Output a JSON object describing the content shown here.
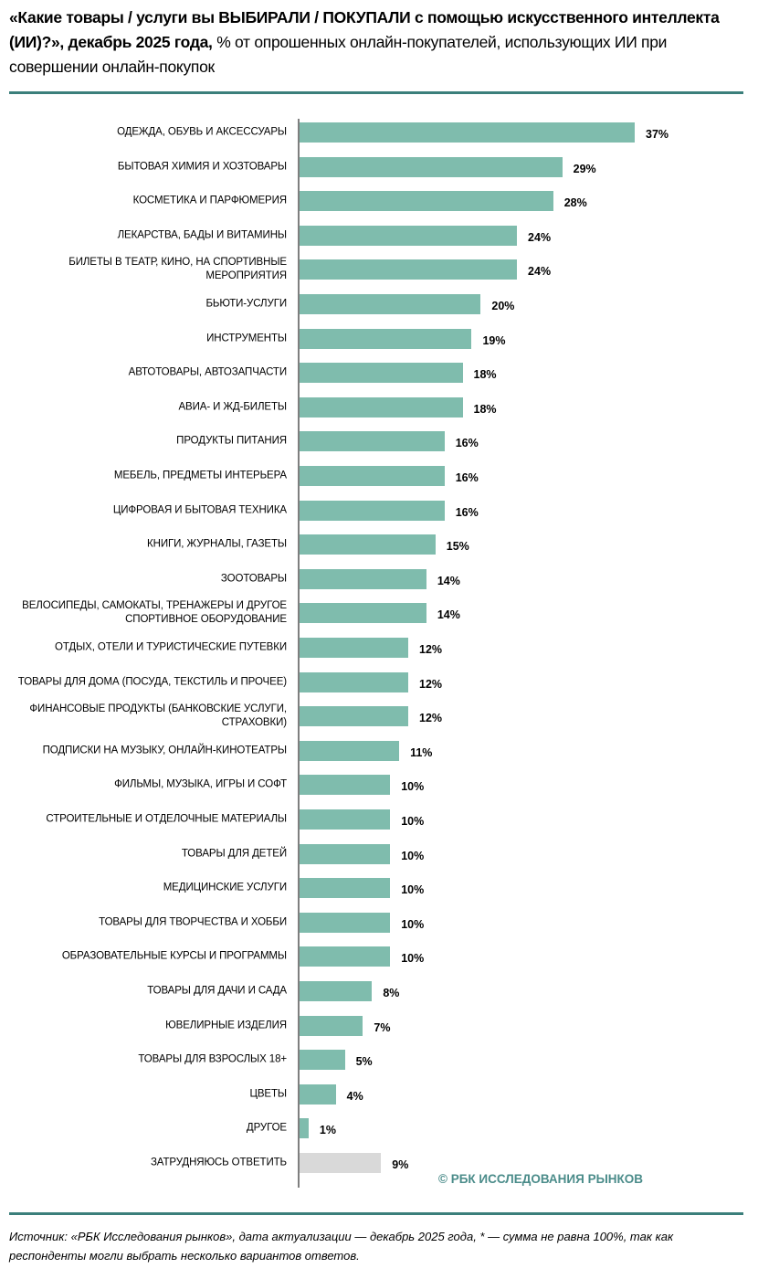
{
  "header": {
    "title_bold": "«Какие товары / услуги вы ВЫБИРАЛИ / ПОКУПАЛИ с помощью искусственного интеллекта (ИИ)?», декабрь 2025 года,",
    "title_regular": "% от опрошенных онлайн-покупателей, использующих ИИ при совершении онлайн-покупок"
  },
  "chart_data": {
    "type": "bar",
    "orientation": "horizontal",
    "unit": "%",
    "xlim": [
      0,
      37
    ],
    "grid": false,
    "colors": {
      "bar": "#7fbcad",
      "other_bar": "#d9d9d9",
      "accent": "#3b7f7b"
    },
    "categories": [
      "ОДЕЖДА, ОБУВЬ И АКСЕССУАРЫ",
      "БЫТОВАЯ ХИМИЯ И ХОЗТОВАРЫ",
      "КОСМЕТИКА И ПАРФЮМЕРИЯ",
      "ЛЕКАРСТВА, БАДЫ И ВИТАМИНЫ",
      "БИЛЕТЫ В ТЕАТР, КИНО, НА СПОРТИВНЫЕ МЕРОПРИЯТИЯ",
      "БЬЮТИ-УСЛУГИ",
      "ИНСТРУМЕНТЫ",
      "АВТОТОВАРЫ, АВТОЗАПЧАСТИ",
      "АВИА- И ЖД-БИЛЕТЫ",
      "ПРОДУКТЫ ПИТАНИЯ",
      "МЕБЕЛЬ, ПРЕДМЕТЫ ИНТЕРЬЕРА",
      "ЦИФРОВАЯ И БЫТОВАЯ ТЕХНИКА",
      "КНИГИ, ЖУРНАЛЫ, ГАЗЕТЫ",
      "ЗООТОВАРЫ",
      "ВЕЛОСИПЕДЫ, САМОКАТЫ, ТРЕНАЖЕРЫ И ДРУГОЕ СПОРТИВНОЕ ОБОРУДОВАНИЕ",
      "ОТДЫХ, ОТЕЛИ И ТУРИСТИЧЕСКИЕ ПУТЕВКИ",
      "ТОВАРЫ ДЛЯ ДОМА (ПОСУДА, ТЕКСТИЛЬ И ПРОЧЕЕ)",
      "ФИНАНСОВЫЕ ПРОДУКТЫ (БАНКОВСКИЕ УСЛУГИ, СТРАХОВКИ)",
      "ПОДПИСКИ НА МУЗЫКУ, ОНЛАЙН-КИНОТЕАТРЫ",
      "ФИЛЬМЫ, МУЗЫКА, ИГРЫ И СОФТ",
      "СТРОИТЕЛЬНЫЕ И ОТДЕЛОЧНЫЕ МАТЕРИАЛЫ",
      "ТОВАРЫ ДЛЯ ДЕТЕЙ",
      "МЕДИЦИНСКИЕ УСЛУГИ",
      "ТОВАРЫ ДЛЯ ТВОРЧЕСТВА И ХОББИ",
      "ОБРАЗОВАТЕЛЬНЫЕ КУРСЫ И ПРОГРАММЫ",
      "ТОВАРЫ ДЛЯ ДАЧИ И САДА",
      "ЮВЕЛИРНЫЕ ИЗДЕЛИЯ",
      "ТОВАРЫ ДЛЯ ВЗРОСЛЫХ 18+",
      "ЦВЕТЫ",
      "ДРУГОЕ",
      "ЗАТРУДНЯЮСЬ ОТВЕТИТЬ"
    ],
    "values": [
      37,
      29,
      28,
      24,
      24,
      20,
      19,
      18,
      18,
      16,
      16,
      16,
      15,
      14,
      14,
      12,
      12,
      12,
      11,
      10,
      10,
      10,
      10,
      10,
      10,
      8,
      7,
      5,
      4,
      1,
      9
    ],
    "value_labels": [
      "37%",
      "29%",
      "28%",
      "24%",
      "24%",
      "20%",
      "19%",
      "18%",
      "18%",
      "16%",
      "16%",
      "16%",
      "15%",
      "14%",
      "14%",
      "12%",
      "12%",
      "12%",
      "11%",
      "10%",
      "10%",
      "10%",
      "10%",
      "10%",
      "10%",
      "8%",
      "7%",
      "5%",
      "4%",
      "1%",
      "9%"
    ],
    "gray_categories": [
      "ЗАТРУДНЯЮСЬ ОТВЕТИТЬ"
    ]
  },
  "watermark": "© РБК ИССЛЕДОВАНИЯ РЫНКОВ",
  "footer": {
    "source": "Источник: «РБК Исследования рынков», дата актуализации — декабрь 2025 года, * — сумма не равна 100%, так как респонденты могли выбрать несколько вариантов ответов."
  }
}
